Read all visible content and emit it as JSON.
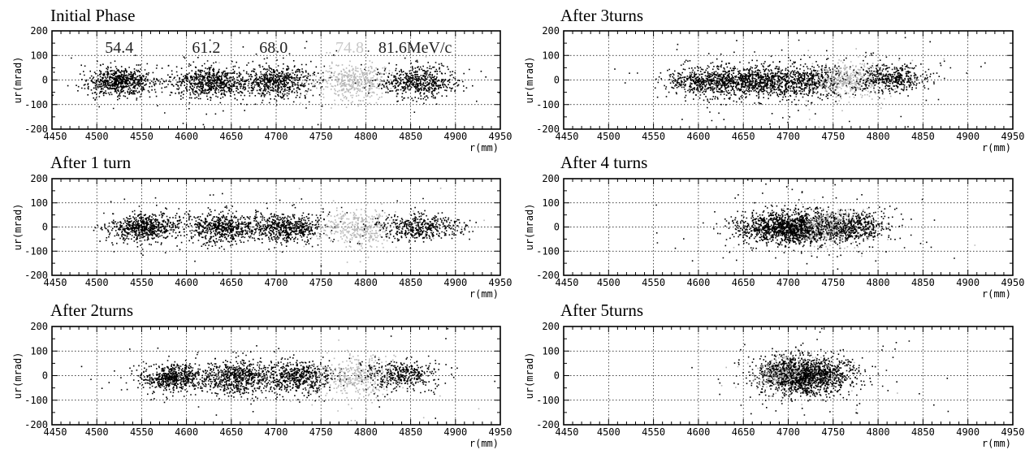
{
  "figure": {
    "panels": [
      {
        "title": "Initial Phase",
        "xlabel": "r(mm)",
        "ylabel": "ur(mrad)",
        "xlim": [
          4450,
          4950
        ],
        "xticks": [
          "4450",
          "4500",
          "4550",
          "4600",
          "4650",
          "4700",
          "4750",
          "4800",
          "4850",
          "4900",
          "4950"
        ],
        "yticks": [
          "200",
          "100",
          "0",
          "-100",
          "-200"
        ],
        "annotations": [
          {
            "text": "54.4",
            "x": 4525,
            "faint": false
          },
          {
            "text": "61.2",
            "x": 4622,
            "faint": false
          },
          {
            "text": "68.0",
            "x": 4697,
            "faint": false
          },
          {
            "text": "74.8",
            "x": 4782,
            "faint": true
          },
          {
            "text": "81.6MeV/c",
            "x": 4855,
            "faint": false
          }
        ]
      },
      {
        "title": "After 1 turn",
        "xlabel": "r(mm)",
        "ylabel": "ur(mrad)",
        "xlim": [
          4450,
          4950
        ],
        "xticks": [
          "4450",
          "4500",
          "4550",
          "4600",
          "4650",
          "4700",
          "4750",
          "4800",
          "4850",
          "4900",
          "4950"
        ],
        "yticks": [
          "200",
          "100",
          "0",
          "-100",
          "-200"
        ],
        "annotations": []
      },
      {
        "title": "After 2turns",
        "xlabel": "r(mm)",
        "ylabel": "ur(mrad)",
        "xlim": [
          4450,
          4950
        ],
        "xticks": [
          "4450",
          "4500",
          "4550",
          "4600",
          "4650",
          "4700",
          "4750",
          "4800",
          "4850",
          "4900",
          "4950"
        ],
        "yticks": [
          "200",
          "100",
          "0",
          "-100",
          "-200"
        ],
        "annotations": []
      },
      {
        "title": "After 3turns",
        "xlabel": "r(mm)",
        "ylabel": "ur(mrad)",
        "xlim": [
          4450,
          4950
        ],
        "xticks": [
          "4450",
          "4500",
          "4550",
          "4600",
          "4650",
          "4700",
          "4750",
          "4800",
          "4850",
          "4900",
          "4950"
        ],
        "yticks": [
          "200",
          "100",
          "0",
          "-100",
          "-200"
        ],
        "annotations": []
      },
      {
        "title": "After 4 turns",
        "xlabel": "r(mm)",
        "ylabel": "ur(mrad)",
        "xlim": [
          4450,
          4950
        ],
        "xticks": [
          "4450",
          "4500",
          "4550",
          "4600",
          "4650",
          "4700",
          "4750",
          "4800",
          "4850",
          "4900",
          "4950"
        ],
        "yticks": [
          "200",
          "100",
          "0",
          "-100",
          "-200"
        ],
        "annotations": []
      },
      {
        "title": "After 5turns",
        "xlabel": "r(mm)",
        "ylabel": "ur(mrad)",
        "xlim": [
          4450,
          4950
        ],
        "xticks": [
          "4450",
          "4500",
          "4550",
          "4600",
          "4650",
          "4700",
          "4750",
          "4800",
          "4850",
          "4900",
          "4950"
        ],
        "yticks": [
          "200",
          "100",
          "0",
          "-100",
          "-200"
        ],
        "annotations": []
      }
    ]
  },
  "chart_data": [
    {
      "type": "scatter",
      "title": "Initial Phase",
      "xlabel": "r(mm)",
      "ylabel": "ur(mrad)",
      "xlim": [
        4450,
        4950
      ],
      "ylim": [
        -200,
        200
      ],
      "grid": true,
      "series": [
        {
          "name": "54.4",
          "color": "#000000",
          "cx": 4527,
          "cy": -5,
          "sx": 18,
          "sy": 28,
          "n": 700
        },
        {
          "name": "61.2",
          "color": "#000000",
          "cx": 4625,
          "cy": -5,
          "sx": 20,
          "sy": 32,
          "n": 650
        },
        {
          "name": "68.0",
          "color": "#000000",
          "cx": 4698,
          "cy": -5,
          "sx": 22,
          "sy": 32,
          "n": 650
        },
        {
          "name": "74.8",
          "color": "#b8b8b8",
          "cx": 4785,
          "cy": -5,
          "sx": 20,
          "sy": 35,
          "n": 450
        },
        {
          "name": "81.6",
          "color": "#000000",
          "cx": 4860,
          "cy": -5,
          "sx": 20,
          "sy": 30,
          "n": 550
        }
      ]
    },
    {
      "type": "scatter",
      "title": "After 1 turn",
      "xlabel": "r(mm)",
      "ylabel": "ur(mrad)",
      "xlim": [
        4450,
        4950
      ],
      "ylim": [
        -200,
        200
      ],
      "grid": true,
      "series": [
        {
          "name": "54.4",
          "color": "#000000",
          "cx": 4553,
          "cy": 0,
          "sx": 18,
          "sy": 28,
          "n": 650
        },
        {
          "name": "61.2",
          "color": "#000000",
          "cx": 4640,
          "cy": 0,
          "sx": 20,
          "sy": 30,
          "n": 600
        },
        {
          "name": "68.0",
          "color": "#000000",
          "cx": 4712,
          "cy": 0,
          "sx": 20,
          "sy": 30,
          "n": 600
        },
        {
          "name": "74.8",
          "color": "#b8b8b8",
          "cx": 4790,
          "cy": 0,
          "sx": 22,
          "sy": 35,
          "n": 400
        },
        {
          "name": "81.6",
          "color": "#000000",
          "cx": 4860,
          "cy": 5,
          "sx": 22,
          "sy": 28,
          "n": 450
        }
      ]
    },
    {
      "type": "scatter",
      "title": "After 2turns",
      "xlabel": "r(mm)",
      "ylabel": "ur(mrad)",
      "xlim": [
        4450,
        4950
      ],
      "ylim": [
        -200,
        200
      ],
      "grid": true,
      "series": [
        {
          "name": "54.4",
          "color": "#000000",
          "cx": 4585,
          "cy": -5,
          "sx": 18,
          "sy": 28,
          "n": 600
        },
        {
          "name": "61.2",
          "color": "#000000",
          "cx": 4655,
          "cy": -5,
          "sx": 20,
          "sy": 32,
          "n": 600
        },
        {
          "name": "68.0",
          "color": "#000000",
          "cx": 4720,
          "cy": -5,
          "sx": 22,
          "sy": 32,
          "n": 600
        },
        {
          "name": "74.8",
          "color": "#b8b8b8",
          "cx": 4790,
          "cy": 0,
          "sx": 20,
          "sy": 38,
          "n": 400
        },
        {
          "name": "81.6",
          "color": "#000000",
          "cx": 4840,
          "cy": 5,
          "sx": 20,
          "sy": 30,
          "n": 400
        }
      ]
    },
    {
      "type": "scatter",
      "title": "After 3turns",
      "xlabel": "r(mm)",
      "ylabel": "ur(mrad)",
      "xlim": [
        4450,
        4950
      ],
      "ylim": [
        -200,
        200
      ],
      "grid": true,
      "series": [
        {
          "name": "54.4",
          "color": "#000000",
          "cx": 4610,
          "cy": -5,
          "sx": 22,
          "sy": 30,
          "n": 600
        },
        {
          "name": "61.2",
          "color": "#000000",
          "cx": 4665,
          "cy": -5,
          "sx": 22,
          "sy": 32,
          "n": 600
        },
        {
          "name": "68.0",
          "color": "#000000",
          "cx": 4718,
          "cy": -5,
          "sx": 24,
          "sy": 34,
          "n": 600
        },
        {
          "name": "74.8",
          "color": "#b8b8b8",
          "cx": 4770,
          "cy": 5,
          "sx": 20,
          "sy": 35,
          "n": 400
        },
        {
          "name": "81.6",
          "color": "#000000",
          "cx": 4815,
          "cy": 10,
          "sx": 20,
          "sy": 28,
          "n": 450
        }
      ]
    },
    {
      "type": "scatter",
      "title": "After 4 turns",
      "xlabel": "r(mm)",
      "ylabel": "ur(mrad)",
      "xlim": [
        4450,
        4950
      ],
      "ylim": [
        -200,
        200
      ],
      "grid": true,
      "series": [
        {
          "name": "54.4",
          "color": "#000000",
          "cx": 4685,
          "cy": 0,
          "sx": 25,
          "sy": 32,
          "n": 550
        },
        {
          "name": "61.2",
          "color": "#000000",
          "cx": 4705,
          "cy": 0,
          "sx": 25,
          "sy": 35,
          "n": 550
        },
        {
          "name": "68.0",
          "color": "#000000",
          "cx": 4725,
          "cy": -5,
          "sx": 28,
          "sy": 35,
          "n": 550
        },
        {
          "name": "74.8",
          "color": "#b8b8b8",
          "cx": 4750,
          "cy": 5,
          "sx": 22,
          "sy": 35,
          "n": 350
        },
        {
          "name": "81.6",
          "color": "#000000",
          "cx": 4775,
          "cy": 5,
          "sx": 18,
          "sy": 30,
          "n": 400
        }
      ]
    },
    {
      "type": "scatter",
      "title": "After 5turns",
      "xlabel": "r(mm)",
      "ylabel": "ur(mrad)",
      "xlim": [
        4450,
        4950
      ],
      "ylim": [
        -200,
        200
      ],
      "grid": true,
      "series": [
        {
          "name": "54.4",
          "color": "#000000",
          "cx": 4705,
          "cy": 5,
          "sx": 22,
          "sy": 38,
          "n": 450
        },
        {
          "name": "61.2",
          "color": "#000000",
          "cx": 4712,
          "cy": 0,
          "sx": 22,
          "sy": 38,
          "n": 450
        },
        {
          "name": "68.0",
          "color": "#000000",
          "cx": 4718,
          "cy": 0,
          "sx": 24,
          "sy": 40,
          "n": 450
        },
        {
          "name": "74.8",
          "color": "#b8b8b8",
          "cx": 4700,
          "cy": 10,
          "sx": 22,
          "sy": 40,
          "n": 250
        },
        {
          "name": "81.6",
          "color": "#000000",
          "cx": 4735,
          "cy": 5,
          "sx": 22,
          "sy": 35,
          "n": 350
        }
      ]
    }
  ]
}
